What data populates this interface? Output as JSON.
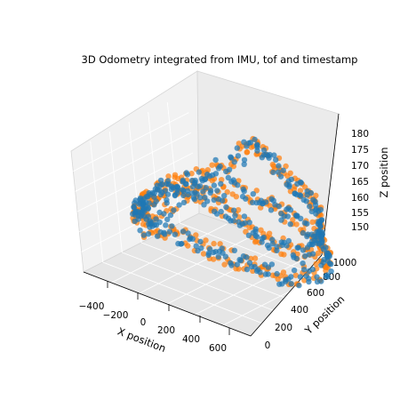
{
  "chart_data": {
    "type": "scatter",
    "projection": "3d",
    "title": "3D Odometry integrated from IMU, tof and timestamp",
    "xlabel": "X position",
    "ylabel": "Y position",
    "zlabel": "Z position",
    "xlim": [
      -550,
      720
    ],
    "ylim": [
      -100,
      1080
    ],
    "zlim": [
      147,
      184
    ],
    "xticks": [
      "−400",
      "−200",
      "0",
      "200",
      "400",
      "600"
    ],
    "yticks": [
      "0",
      "200",
      "400",
      "600",
      "800",
      "1000"
    ],
    "zticks": [
      "150",
      "155",
      "160",
      "165",
      "170",
      "175",
      "180"
    ],
    "grid": true,
    "pane_color": "#f2f2f2",
    "series": [
      {
        "color": "#ff7f0e",
        "path": [
          [
            -350,
            250,
            158
          ],
          [
            -300,
            350,
            160
          ],
          [
            -200,
            500,
            166
          ],
          [
            -100,
            650,
            170
          ],
          [
            0,
            780,
            168
          ],
          [
            100,
            870,
            165
          ],
          [
            200,
            930,
            162
          ],
          [
            300,
            960,
            160
          ],
          [
            400,
            980,
            158
          ],
          [
            500,
            960,
            156
          ],
          [
            600,
            900,
            154
          ],
          [
            620,
            820,
            152
          ],
          [
            560,
            720,
            151
          ],
          [
            460,
            640,
            150
          ],
          [
            350,
            560,
            151
          ],
          [
            250,
            500,
            153
          ],
          [
            150,
            420,
            155
          ],
          [
            50,
            350,
            157
          ],
          [
            -50,
            270,
            160
          ],
          [
            -150,
            200,
            162
          ],
          [
            -250,
            150,
            165
          ],
          [
            -300,
            250,
            167
          ],
          [
            -250,
            380,
            170
          ],
          [
            -150,
            500,
            172
          ],
          [
            -50,
            620,
            175
          ],
          [
            50,
            740,
            178
          ],
          [
            120,
            850,
            182
          ],
          [
            180,
            900,
            178
          ],
          [
            250,
            950,
            174
          ],
          [
            320,
            980,
            170
          ],
          [
            400,
            1000,
            168
          ],
          [
            480,
            970,
            165
          ],
          [
            550,
            900,
            163
          ],
          [
            600,
            800,
            160
          ],
          [
            580,
            700,
            158
          ],
          [
            500,
            600,
            160
          ],
          [
            420,
            520,
            163
          ],
          [
            350,
            450,
            166
          ],
          [
            280,
            380,
            170
          ],
          [
            200,
            320,
            173
          ],
          [
            120,
            260,
            176
          ],
          [
            50,
            200,
            178
          ],
          [
            -50,
            160,
            176
          ],
          [
            -150,
            130,
            172
          ],
          [
            -250,
            160,
            168
          ],
          [
            -350,
            220,
            164
          ],
          [
            -420,
            300,
            160
          ]
        ]
      },
      {
        "color": "#1f77b4",
        "path": [
          [
            -350,
            240,
            158
          ],
          [
            -290,
            340,
            160
          ],
          [
            -190,
            490,
            166
          ],
          [
            -90,
            640,
            170
          ],
          [
            10,
            770,
            168
          ],
          [
            110,
            860,
            165
          ],
          [
            210,
            920,
            162
          ],
          [
            310,
            950,
            160
          ],
          [
            410,
            970,
            158
          ],
          [
            510,
            950,
            156
          ],
          [
            610,
            890,
            154
          ],
          [
            630,
            810,
            152
          ],
          [
            570,
            710,
            151
          ],
          [
            470,
            630,
            150
          ],
          [
            360,
            550,
            151
          ],
          [
            260,
            490,
            153
          ],
          [
            160,
            410,
            155
          ],
          [
            60,
            340,
            157
          ],
          [
            -40,
            260,
            160
          ],
          [
            -140,
            190,
            162
          ],
          [
            -240,
            140,
            165
          ],
          [
            -290,
            240,
            167
          ],
          [
            -240,
            370,
            170
          ],
          [
            -140,
            490,
            172
          ],
          [
            -40,
            610,
            175
          ],
          [
            60,
            730,
            178
          ],
          [
            130,
            840,
            182
          ],
          [
            190,
            890,
            178
          ],
          [
            260,
            940,
            174
          ],
          [
            330,
            970,
            170
          ],
          [
            410,
            990,
            168
          ],
          [
            490,
            960,
            165
          ],
          [
            560,
            890,
            163
          ],
          [
            610,
            790,
            160
          ],
          [
            590,
            690,
            158
          ],
          [
            510,
            590,
            160
          ],
          [
            430,
            510,
            163
          ],
          [
            360,
            440,
            166
          ],
          [
            290,
            370,
            170
          ],
          [
            210,
            310,
            173
          ],
          [
            130,
            250,
            176
          ],
          [
            60,
            190,
            178
          ],
          [
            -40,
            150,
            176
          ],
          [
            -140,
            120,
            172
          ],
          [
            -240,
            150,
            168
          ],
          [
            -340,
            210,
            164
          ],
          [
            -410,
            290,
            160
          ]
        ]
      }
    ]
  }
}
